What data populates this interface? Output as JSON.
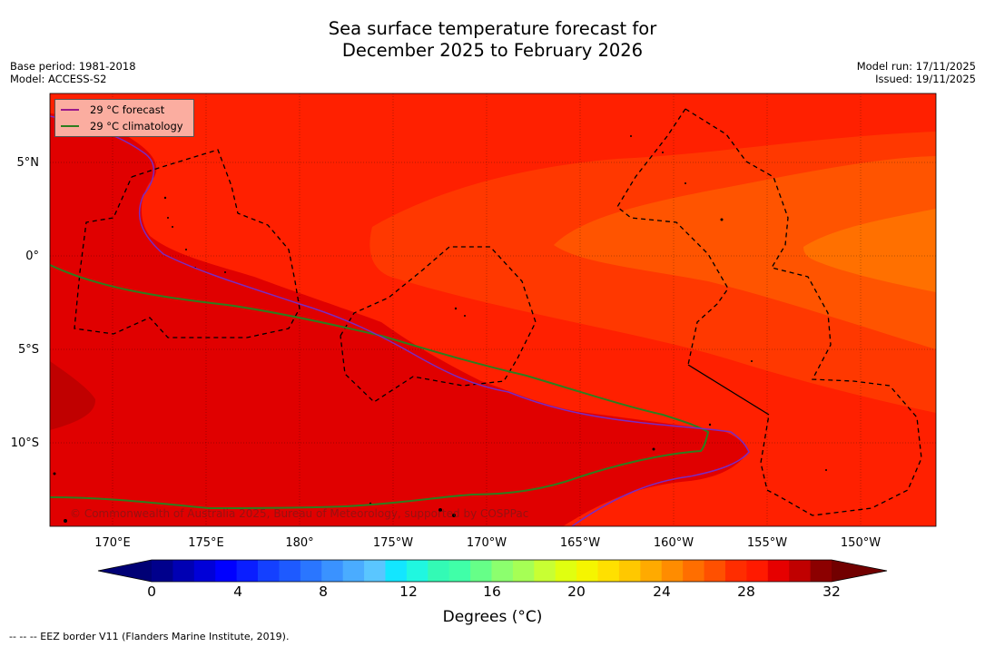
{
  "title_line1": "Sea surface temperature forecast for",
  "title_line2": "December 2025 to February 2026",
  "meta_left": {
    "base_period": "Base period: 1981-2018",
    "model": "Model: ACCESS-S2"
  },
  "meta_right": {
    "model_run": "Model run: 17/11/2025",
    "issued": "Issued: 19/11/2025"
  },
  "legend": {
    "forecast": "29 °C  forecast",
    "climatology": "29 °C  climatology",
    "forecast_color": "#9b1a8a",
    "climatology_color": "#2e7d1e"
  },
  "lat_labels": [
    "5°N",
    "0°",
    "5°S",
    "10°S"
  ],
  "lon_labels": [
    "170°E",
    "175°E",
    "180°",
    "175°W",
    "170°W",
    "165°W",
    "160°W",
    "155°W",
    "150°W"
  ],
  "copyright": "© Commonwealth of Australia 2025, Bureau of Meteorology, supported by COSPPac",
  "colorbar": {
    "ticks": [
      "0",
      "4",
      "8",
      "12",
      "16",
      "20",
      "24",
      "28",
      "32"
    ],
    "label": "Degrees (°C)",
    "colors": [
      "#00008c",
      "#0000b3",
      "#0000d8",
      "#0000ff",
      "#0a1eff",
      "#1440ff",
      "#1e5aff",
      "#2a76ff",
      "#3a92ff",
      "#4aacff",
      "#5ac6ff",
      "#13e6ff",
      "#20f7e0",
      "#33fab5",
      "#40ffa8",
      "#66ff88",
      "#8cff6e",
      "#a6ff55",
      "#c8ff33",
      "#e0ff10",
      "#f5f500",
      "#ffe000",
      "#ffc800",
      "#ffaa00",
      "#ff8c00",
      "#ff6e00",
      "#ff5000",
      "#ff2d00",
      "#ff1a00",
      "#e60000",
      "#c00000",
      "#8c0000"
    ],
    "under_color": "#000075",
    "over_color": "#720000"
  },
  "footnote": "--  --  -- EEZ border V11 (Flanders Marine Institute, 2019)."
}
